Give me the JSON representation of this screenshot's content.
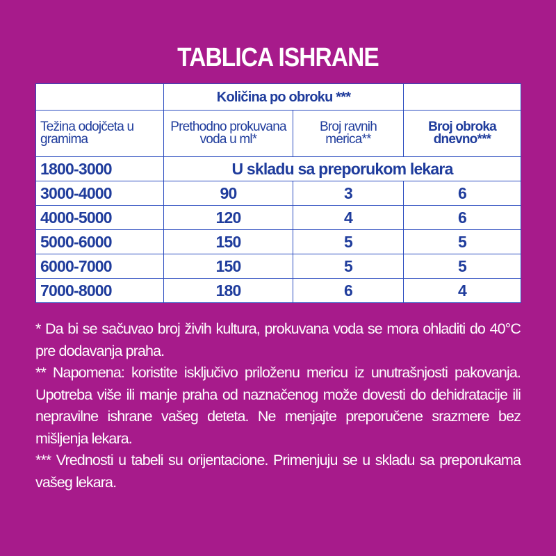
{
  "title": "TABLICA ISHRANE",
  "table": {
    "group_header": "Količina po obroku ***",
    "headers": [
      "Težina odojčeta u gramima",
      "Prethodno prokuvana voda u ml*",
      "Broj ravnih merica**",
      "Broj obroka dnevno***"
    ],
    "special_row": {
      "weight": "1800-3000",
      "text": "U skladu sa preporukom lekara"
    },
    "rows": [
      [
        "3000-4000",
        "90",
        "3",
        "6"
      ],
      [
        "4000-5000",
        "120",
        "4",
        "6"
      ],
      [
        "5000-6000",
        "150",
        "5",
        "5"
      ],
      [
        "6000-7000",
        "150",
        "5",
        "5"
      ],
      [
        "7000-8000",
        "180",
        "6",
        "4"
      ]
    ]
  },
  "notes": [
    "* Da bi se sačuvao broj živih kultura, prokuvana voda se mora ohladiti do 40°C pre dodavanja praha.",
    "** Napomena: koristite isključivo priloženu mericu iz unutrašnjosti pakovanja. Upotreba više ili manje praha od naznačenog može dovesti do dehidratacije ili nepravilne ishrane vašeg deteta. Ne menjajte preporučene srazmere bez mišljenja lekara.",
    "*** Vrednosti u tabeli su orijentacione. Primenjuju se u skladu sa preporukama vašeg lekara."
  ],
  "colors": {
    "background": "#a71b8b",
    "table_text": "#1f3c9c",
    "table_border": "#2a4bbf"
  }
}
